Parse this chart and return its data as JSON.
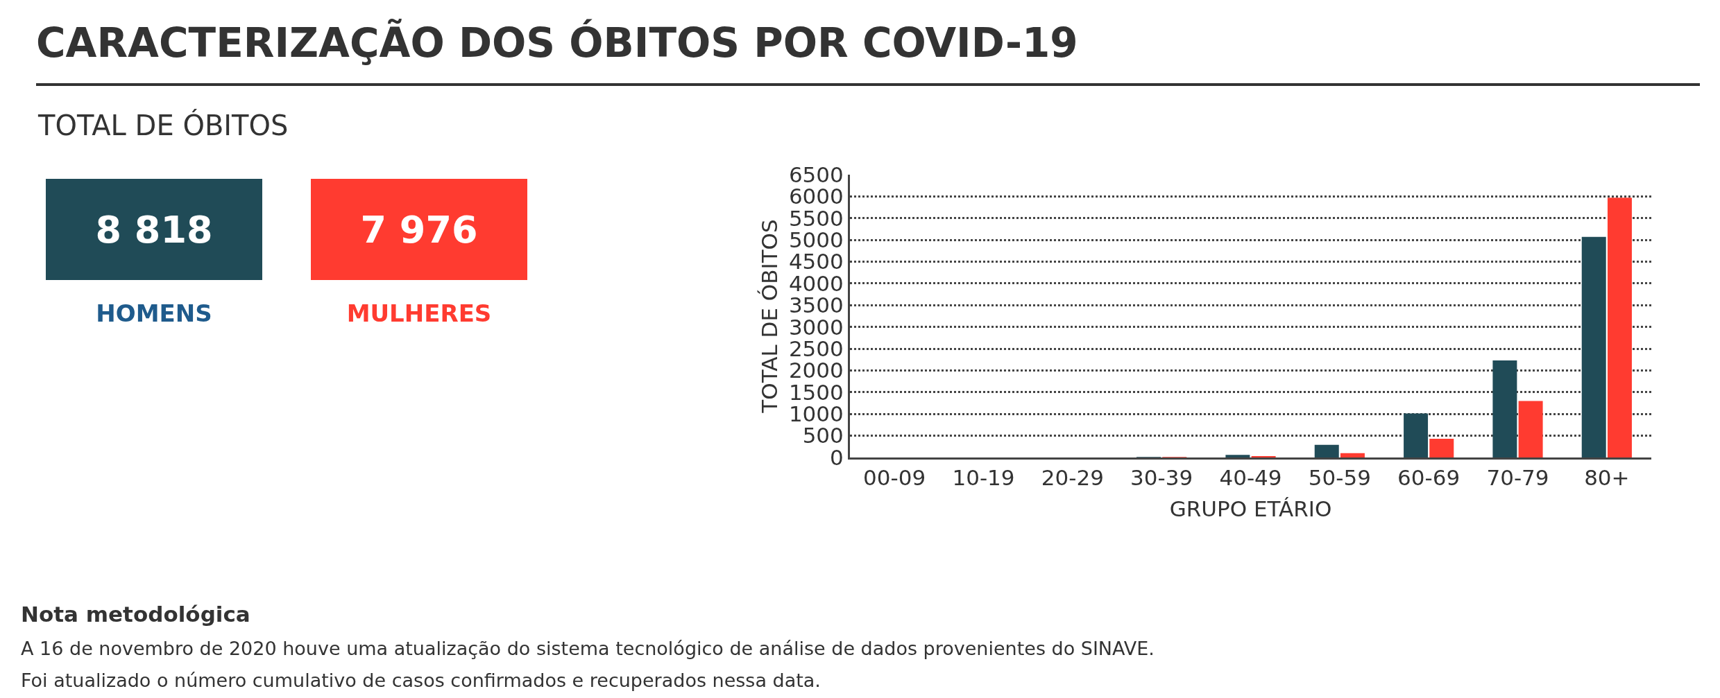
{
  "chart_data": [
    {
      "type": "other",
      "title": "CARACTERIZAÇÃO DOS ÓBITOS POR COVID-19",
      "subtitle": "TOTAL DE ÓBITOS",
      "categories": [
        "HOMENS",
        "MULHERES"
      ],
      "value_labels": [
        "8 818",
        "7 976"
      ],
      "colors": [
        "#204b57",
        "#ff3b30"
      ],
      "annotations": [
        "Nota metodológica",
        "A 16 de novembro de 2020 houve uma atualização do sistema tecnológico de análise de dados provenientes do SINAVE.",
        "Foi atualizado o número cumulativo de casos confirmados e recuperados nessa data."
      ]
    },
    {
      "type": "bar",
      "xlabel": "GRUPO ETÁRIO",
      "ylabel": "TOTAL DE ÓBITOS",
      "categories": [
        "00-09",
        "10-19",
        "20-29",
        "30-39",
        "40-49",
        "50-59",
        "60-69",
        "70-79",
        "80+"
      ],
      "series": [
        {
          "color": "#204b57",
          "values": [
            0,
            0,
            0,
            10,
            60,
            290,
            1010,
            2230,
            5070
          ]
        },
        {
          "color": "#ff3b30",
          "values": [
            0,
            0,
            0,
            10,
            30,
            100,
            430,
            1300,
            5970
          ]
        }
      ],
      "ylim": [
        0,
        6500
      ],
      "yticks": [
        0,
        500,
        1000,
        1500,
        2000,
        2500,
        3000,
        3500,
        4000,
        4500,
        5000,
        5500,
        6000,
        6500
      ],
      "grid": "y"
    }
  ]
}
